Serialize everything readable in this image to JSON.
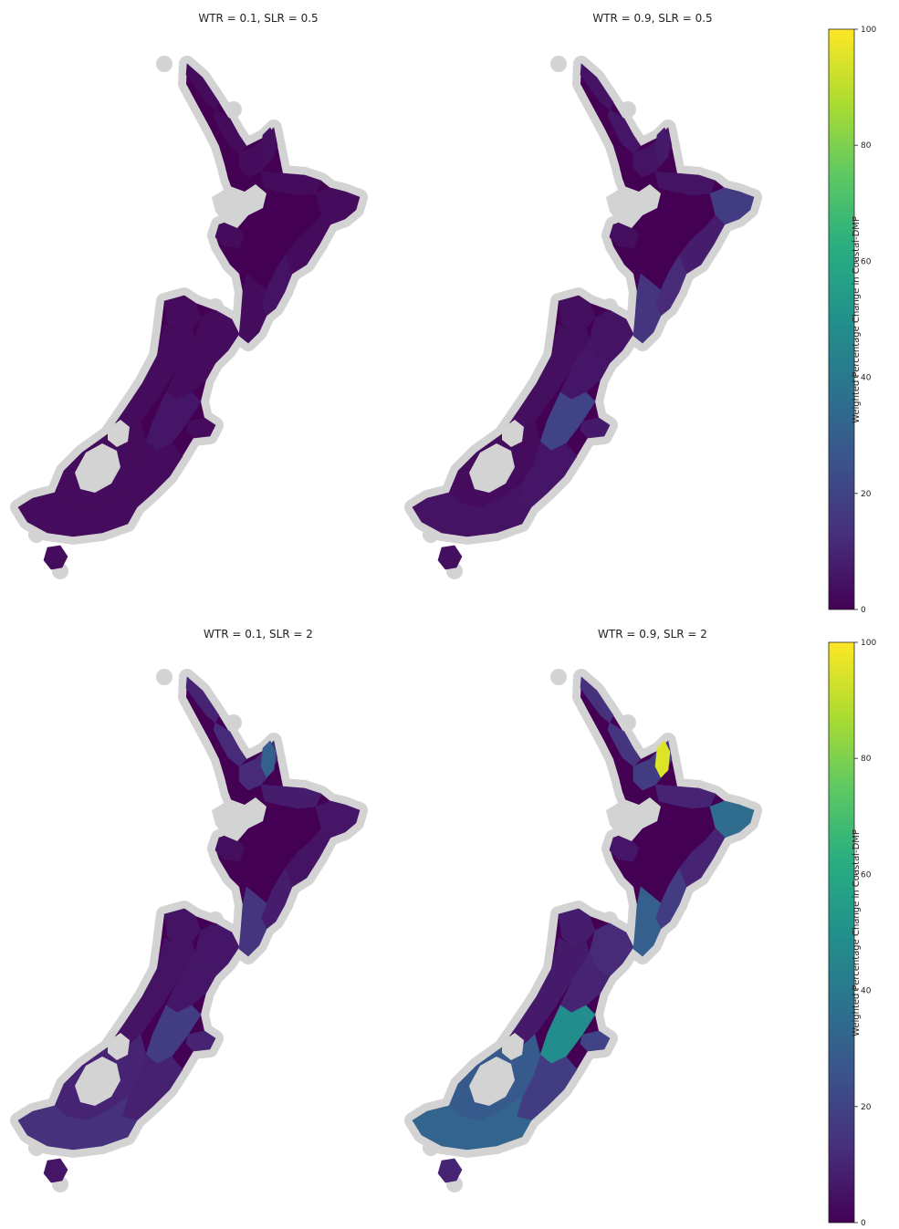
{
  "panels": [
    {
      "title": "WTR = 0.1, SLR = 0.5",
      "values": {
        "north_tip": 3,
        "northland": 3,
        "auckland": 3,
        "coromandel": 4,
        "bop": 3,
        "east_cape": 3,
        "hawkes": 3,
        "taranaki": 3,
        "wellington_east": 5,
        "wellington": 3,
        "nelson": 3,
        "marlborough": 3,
        "west_coast": 3,
        "canterbury_n": 3,
        "canterbury_mid": 6,
        "banks": 3,
        "otago": 3,
        "fiordland": 3,
        "southland": 3,
        "stewart": 3
      }
    },
    {
      "title": "WTR = 0.9, SLR = 0.5",
      "values": {
        "north_tip": 5,
        "northland": 6,
        "auckland": 5,
        "coromandel": 7,
        "bop": 5,
        "east_cape": 18,
        "hawkes": 8,
        "taranaki": 4,
        "wellington_east": 12,
        "wellington": 15,
        "nelson": 4,
        "marlborough": 5,
        "west_coast": 4,
        "canterbury_n": 6,
        "canterbury_mid": 20,
        "banks": 7,
        "otago": 6,
        "fiordland": 3,
        "southland": 5,
        "stewart": 4
      }
    },
    {
      "title": "WTR = 0.1, SLR = 2",
      "values": {
        "north_tip": 10,
        "northland": 12,
        "auckland": 12,
        "coromandel": 30,
        "bop": 8,
        "east_cape": 6,
        "hawkes": 5,
        "taranaki": 4,
        "wellington_east": 8,
        "wellington": 15,
        "nelson": 5,
        "marlborough": 6,
        "west_coast": 5,
        "canterbury_n": 6,
        "canterbury_mid": 18,
        "banks": 10,
        "otago": 9,
        "fiordland": 10,
        "southland": 14,
        "stewart": 6
      }
    },
    {
      "title": "WTR = 0.9, SLR = 2",
      "values": {
        "north_tip": 14,
        "northland": 15,
        "auckland": 18,
        "coromandel": 95,
        "bop": 10,
        "east_cape": 35,
        "hawkes": 10,
        "taranaki": 6,
        "wellington_east": 18,
        "wellington": 30,
        "nelson": 8,
        "marlborough": 12,
        "west_coast": 7,
        "canterbury_n": 10,
        "canterbury_mid": 48,
        "banks": 20,
        "otago": 18,
        "fiordland": 28,
        "southland": 32,
        "stewart": 10
      }
    }
  ],
  "colorbars": [
    {
      "label": "Weighted Percentage Change in Coastal-DMP",
      "ticks": [
        "0",
        "20",
        "40",
        "60",
        "80",
        "100"
      ],
      "min": 0,
      "max": 100,
      "colormap": "viridis"
    },
    {
      "label": "Weighted Percentage Change in Coastal-DMP",
      "ticks": [
        "0",
        "20",
        "40",
        "60",
        "80",
        "100"
      ],
      "min": 0,
      "max": 100,
      "colormap": "viridis"
    }
  ],
  "colors": {
    "halo": "#d3d3d3",
    "lake": "#d3d3d3",
    "background": "#ffffff"
  }
}
